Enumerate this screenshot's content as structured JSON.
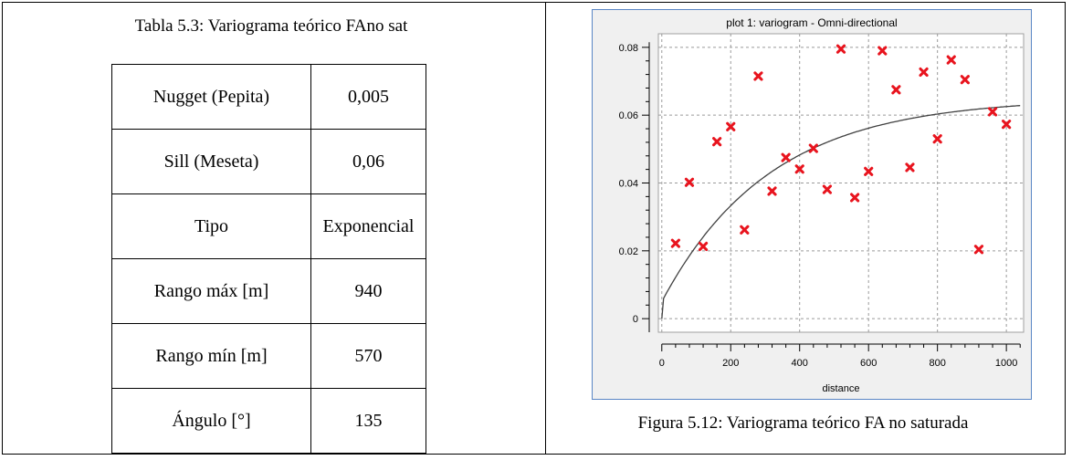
{
  "table": {
    "caption": "Tabla 5.3: Variograma teórico FAno sat",
    "rows": [
      {
        "name": "Nugget (Pepita)",
        "value": "0,005"
      },
      {
        "name": "Sill (Meseta)",
        "value": "0,06"
      },
      {
        "name": "Tipo",
        "value": "Exponencial"
      },
      {
        "name": "Rango máx [m]",
        "value": "940"
      },
      {
        "name": "Rango mín [m]",
        "value": "570"
      },
      {
        "name": "Ángulo [°]",
        "value": "135"
      }
    ]
  },
  "figure": {
    "caption": "Figura 5.12: Variograma teórico FA no saturada"
  },
  "chart_data": {
    "type": "scatter",
    "title": "plot 1:  variogram - Omni-directional",
    "xlabel": "distance",
    "ylabel": "",
    "xlim": [
      -10,
      1050
    ],
    "ylim": [
      -0.004,
      0.084
    ],
    "x_ticks": [
      0,
      200,
      400,
      600,
      800,
      1000
    ],
    "y_ticks": [
      0,
      0.02,
      0.04,
      0.06,
      0.08
    ],
    "x_tick_labels": [
      "0",
      "200",
      "400",
      "600",
      "800",
      "1000"
    ],
    "y_tick_labels": [
      "0",
      "0.02",
      "0.04",
      "0.06",
      "0.08"
    ],
    "grid": true,
    "marker_color": "#e8141e",
    "line_color": "#404040",
    "points": [
      [
        40,
        0.0222
      ],
      [
        80,
        0.0402
      ],
      [
        120,
        0.0213
      ],
      [
        160,
        0.0522
      ],
      [
        200,
        0.0566
      ],
      [
        240,
        0.0262
      ],
      [
        280,
        0.0715
      ],
      [
        320,
        0.0376
      ],
      [
        360,
        0.0475
      ],
      [
        400,
        0.0441
      ],
      [
        440,
        0.0502
      ],
      [
        480,
        0.0381
      ],
      [
        520,
        0.0795
      ],
      [
        560,
        0.0357
      ],
      [
        600,
        0.0434
      ],
      [
        640,
        0.079
      ],
      [
        680,
        0.0675
      ],
      [
        720,
        0.0446
      ],
      [
        760,
        0.0727
      ],
      [
        800,
        0.053
      ],
      [
        840,
        0.0763
      ],
      [
        880,
        0.0705
      ],
      [
        920,
        0.0204
      ],
      [
        960,
        0.061
      ],
      [
        1000,
        0.0573
      ]
    ],
    "model_curve": {
      "nugget": 0.005,
      "sill": 0.06,
      "range": 940,
      "type": "exponential"
    }
  }
}
